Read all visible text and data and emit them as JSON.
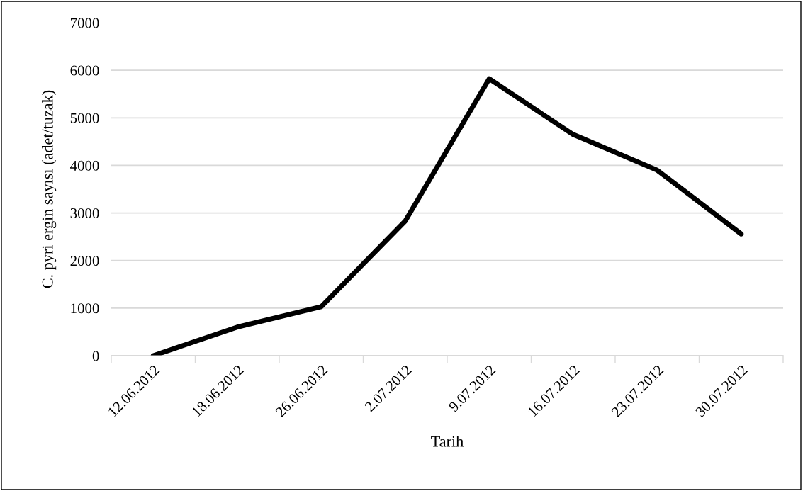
{
  "chart_data": {
    "type": "line",
    "xlabel": "Tarih",
    "ylabel": "C. pyri ergin sayısı (adet/tuzak)",
    "categories": [
      "12.06.2012",
      "18.06.2012",
      "26.06.2012",
      "2.07.2012",
      "9.07.2012",
      "16.07.2012",
      "23.07.2012",
      "30.07.2012"
    ],
    "series": [
      {
        "color": "#000000",
        "values": [
          0,
          600,
          1030,
          2830,
          5820,
          4650,
          3900,
          2560
        ]
      }
    ],
    "ylim": [
      0,
      7000
    ],
    "yticks": [
      0,
      1000,
      2000,
      3000,
      4000,
      5000,
      6000,
      7000
    ],
    "grid": "y",
    "legend": false,
    "marker": "none",
    "line_style": "solid"
  }
}
